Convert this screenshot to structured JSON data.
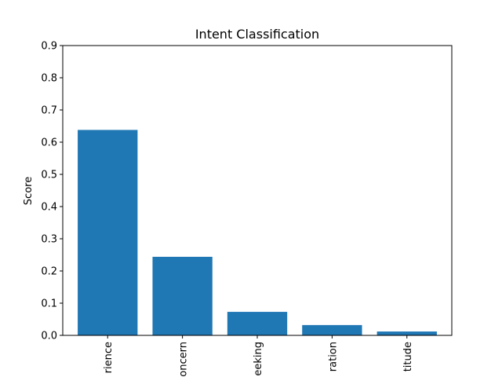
{
  "chart_data": {
    "type": "bar",
    "title": "Intent Classification",
    "xlabel": "",
    "ylabel": "Score",
    "categories": [
      "rience",
      "oncern",
      "eeking",
      "ration",
      "titude"
    ],
    "values": [
      0.638,
      0.244,
      0.073,
      0.032,
      0.012
    ],
    "ylim": [
      0,
      0.9
    ],
    "yticks": [
      "0.0",
      "0.1",
      "0.2",
      "0.3",
      "0.4",
      "0.5",
      "0.6",
      "0.7",
      "0.8",
      "0.9"
    ],
    "bar_color": "#1f77b4",
    "grid": false,
    "legend": "none"
  }
}
